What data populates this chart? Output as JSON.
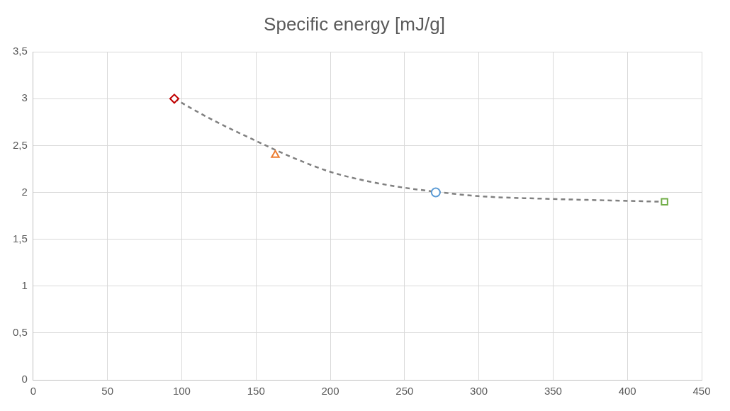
{
  "chart_data": {
    "type": "scatter",
    "title": "Specific energy [mJ/g]",
    "series": [
      {
        "type": "line",
        "color": "#808080",
        "line_style": "dashed",
        "marker": "none",
        "x": [
          95,
          120,
          150,
          175,
          200,
          225,
          250,
          275,
          300,
          350,
          400,
          425
        ],
        "values": [
          3,
          2.78,
          2.55,
          2.37,
          2.22,
          2.12,
          2.05,
          2.0,
          1.96,
          1.93,
          1.91,
          1.9
        ]
      },
      {
        "color": "#c00000",
        "marker": "diamond",
        "x": [
          95
        ],
        "values": [
          3
        ]
      },
      {
        "color": "#ed7d31",
        "marker": "triangle",
        "x": [
          163
        ],
        "values": [
          2.4
        ]
      },
      {
        "color": "#5b9bd5",
        "marker": "circle",
        "x": [
          271
        ],
        "values": [
          2
        ]
      },
      {
        "color": "#70ad47",
        "marker": "square",
        "x": [
          425
        ],
        "values": [
          1.9
        ]
      }
    ],
    "xlim": [
      0,
      450
    ],
    "xticks": [
      0,
      50,
      100,
      150,
      200,
      250,
      300,
      350,
      400,
      450
    ],
    "ylim": [
      0,
      3.5
    ],
    "yticks": [
      0,
      {
        "value": 0.5,
        "label": "0,5"
      },
      1,
      {
        "value": 1.5,
        "label": "1,5"
      },
      2,
      {
        "value": 2.5,
        "label": "2,5"
      },
      3,
      {
        "value": 3.5,
        "label": "3,5"
      }
    ],
    "grid": true,
    "legend": false
  }
}
